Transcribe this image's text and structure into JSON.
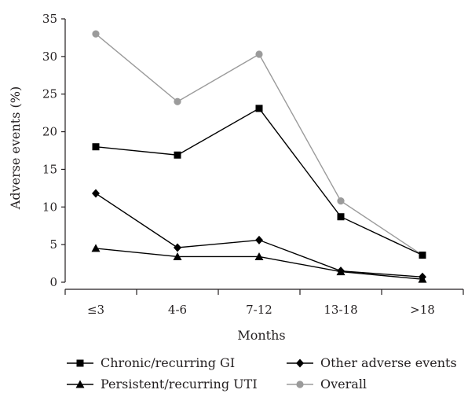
{
  "chart_data": {
    "type": "line",
    "title": "",
    "xlabel": "Months",
    "ylabel": "Adverse events (%)",
    "categories": [
      "≤3",
      "4-6",
      "7-12",
      "13-18",
      ">18"
    ],
    "ylim": [
      0,
      35
    ],
    "yticks": [
      0,
      5,
      10,
      15,
      20,
      25,
      30,
      35
    ],
    "grid": false,
    "legend_position": "bottom",
    "series": [
      {
        "name": "Chronic/recurring GI",
        "values": [
          18.0,
          16.9,
          23.1,
          8.7,
          3.6
        ],
        "color": "#000000",
        "marker": "square"
      },
      {
        "name": "Persistent/recurring UTI",
        "values": [
          4.5,
          3.4,
          3.4,
          1.4,
          0.4
        ],
        "color": "#000000",
        "marker": "triangle"
      },
      {
        "name": "Other adverse events",
        "values": [
          11.8,
          4.6,
          5.6,
          1.5,
          0.7
        ],
        "color": "#000000",
        "marker": "diamond"
      },
      {
        "name": "Overall",
        "values": [
          33.0,
          24.0,
          30.3,
          10.8,
          3.6
        ],
        "color": "#9b9b9b",
        "marker": "circle"
      }
    ]
  }
}
